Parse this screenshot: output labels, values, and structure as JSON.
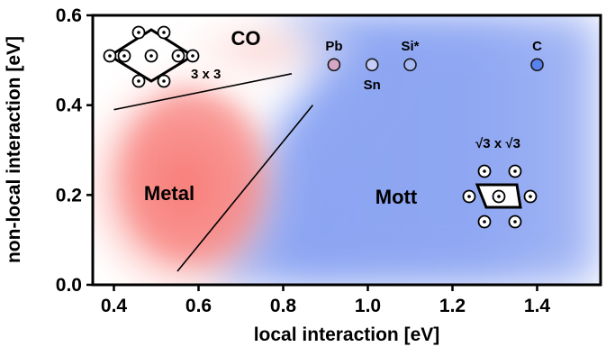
{
  "chart_data": {
    "type": "scatter",
    "xlabel": "local interaction [eV]",
    "ylabel": "non-local interaction [eV]",
    "xlim": [
      0.35,
      1.55
    ],
    "ylim": [
      0.0,
      0.6
    ],
    "xticks": [
      "0.4",
      "0.6",
      "0.8",
      "1.0",
      "1.2",
      "1.4"
    ],
    "yticks": [
      "0.0",
      "0.2",
      "0.4",
      "0.6"
    ],
    "points": [
      {
        "label": "Pb",
        "x": 0.92,
        "y": 0.49,
        "color": "#d6a6c6",
        "label_pos": "above"
      },
      {
        "label": "Sn",
        "x": 1.01,
        "y": 0.49,
        "color": "#c5cdfa",
        "label_pos": "below"
      },
      {
        "label": "Si*",
        "x": 1.1,
        "y": 0.49,
        "color": "#a7b8f7",
        "label_pos": "above"
      },
      {
        "label": "C",
        "x": 1.4,
        "y": 0.49,
        "color": "#5a82ee",
        "label_pos": "above"
      }
    ],
    "regions": [
      {
        "label": "Metal",
        "color": "#f87c78"
      },
      {
        "label": "Mott",
        "color": "#7c98f2"
      },
      {
        "label": "CO",
        "color": "#fbd9d6"
      }
    ],
    "boundaries": [
      {
        "x": [
          0.4,
          0.82
        ],
        "y": [
          0.39,
          0.47
        ]
      },
      {
        "x": [
          0.55,
          0.87
        ],
        "y": [
          0.03,
          0.4
        ]
      }
    ],
    "annotations": {
      "co_lattice": "3 x 3",
      "mott_lattice": "√3 x √3"
    }
  }
}
